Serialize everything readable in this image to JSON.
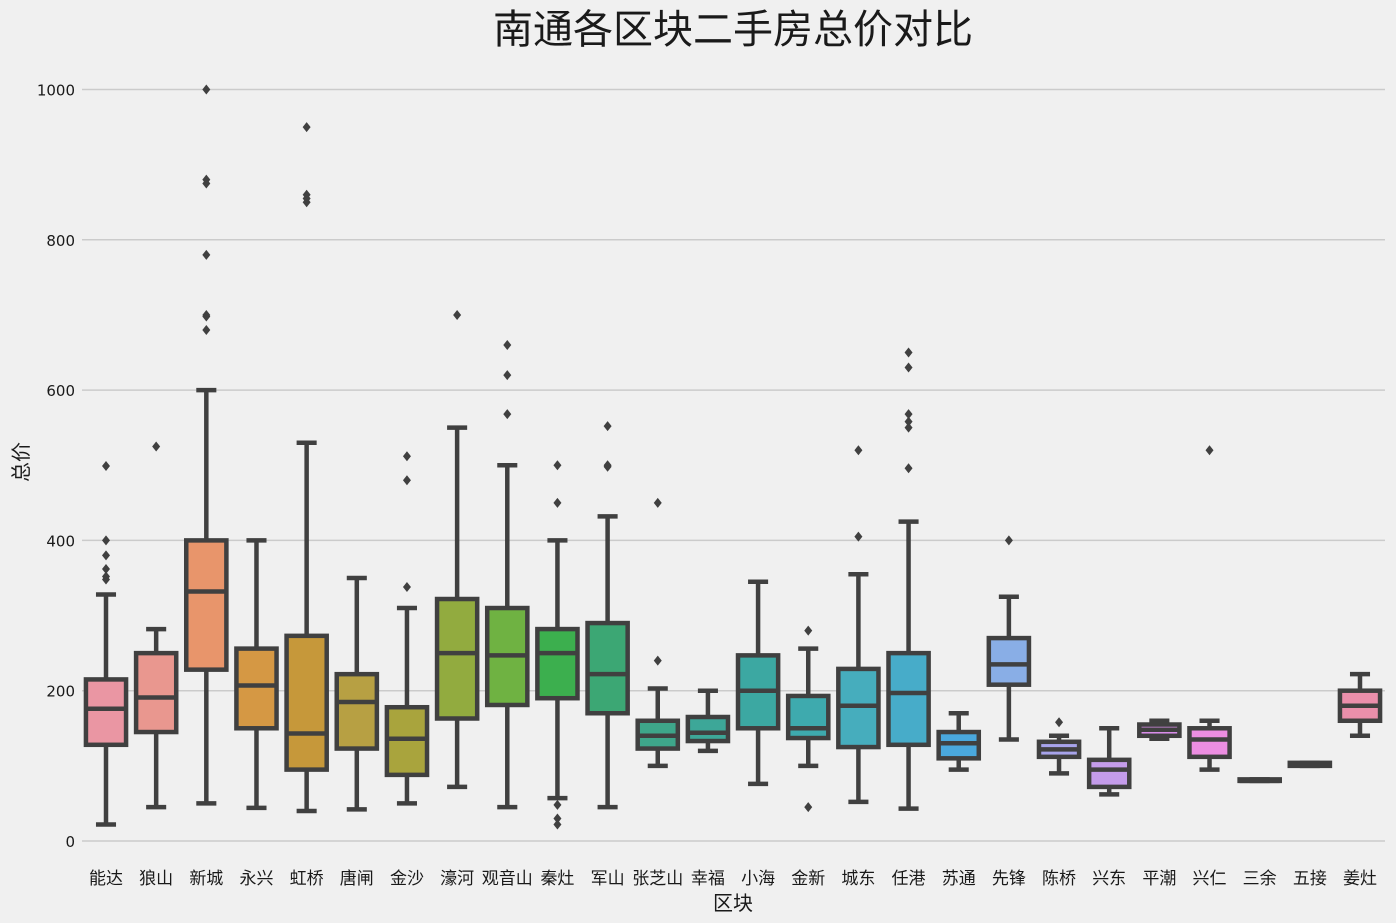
{
  "chart_data": {
    "type": "box",
    "title": "南通各区块二手房总价对比",
    "xlabel": "区块",
    "ylabel": "总价",
    "ylim": [
      -35,
      1065
    ],
    "yticks": [
      0,
      200,
      400,
      600,
      800,
      1000
    ],
    "grid": "horizontal",
    "line_color": "#404040",
    "categories": [
      "能达",
      "狼山",
      "新城",
      "永兴",
      "虹桥",
      "唐闸",
      "金沙",
      "濠河",
      "观音山",
      "秦灶",
      "军山",
      "张芝山",
      "幸福",
      "小海",
      "金新",
      "城东",
      "任港",
      "苏通",
      "先锋",
      "陈桥",
      "兴东",
      "平潮",
      "兴仁",
      "三余",
      "五接",
      "姜灶"
    ],
    "colors": [
      "#ea96a3",
      "#e9978f",
      "#e8956b",
      "#d59844",
      "#c6983a",
      "#b7a043",
      "#a9a43d",
      "#92ab3f",
      "#6fb242",
      "#3caf4e",
      "#3ca774",
      "#3ea68a",
      "#3da798",
      "#3ca8a2",
      "#3eaaae",
      "#46adbd",
      "#47acc9",
      "#4aa8dd",
      "#89aee6",
      "#a7a3ea",
      "#c49cea",
      "#d98ee9",
      "#ec8ee1",
      "#ed8fc8",
      "#ee92ba",
      "#ea8fab"
    ],
    "boxes": [
      {
        "whislo": 22,
        "q1": 128,
        "med": 176,
        "q3": 215,
        "whishi": 328,
        "fliers": [
          348,
          352,
          362,
          380,
          400,
          499
        ]
      },
      {
        "whislo": 45,
        "q1": 145,
        "med": 191,
        "q3": 250,
        "whishi": 282,
        "fliers": [
          525
        ]
      },
      {
        "whislo": 50,
        "q1": 228,
        "med": 332,
        "q3": 400,
        "whishi": 600,
        "fliers": [
          680,
          698,
          700,
          780,
          875,
          880,
          1000
        ]
      },
      {
        "whislo": 44,
        "q1": 150,
        "med": 207,
        "q3": 256,
        "whishi": 400,
        "fliers": []
      },
      {
        "whislo": 40,
        "q1": 95,
        "med": 143,
        "q3": 273,
        "whishi": 530,
        "fliers": [
          850,
          855,
          860,
          950
        ]
      },
      {
        "whislo": 42,
        "q1": 123,
        "med": 185,
        "q3": 222,
        "whishi": 350,
        "fliers": []
      },
      {
        "whislo": 50,
        "q1": 88,
        "med": 136,
        "q3": 178,
        "whishi": 310,
        "fliers": [
          338,
          480,
          512
        ]
      },
      {
        "whislo": 72,
        "q1": 163,
        "med": 250,
        "q3": 322,
        "whishi": 550,
        "fliers": [
          700
        ]
      },
      {
        "whislo": 45,
        "q1": 181,
        "med": 247,
        "q3": 310,
        "whishi": 500,
        "fliers": [
          568,
          620,
          660
        ]
      },
      {
        "whislo": 57,
        "q1": 190,
        "med": 250,
        "q3": 282,
        "whishi": 400,
        "fliers": [
          22,
          30,
          48,
          450,
          500
        ]
      },
      {
        "whislo": 45,
        "q1": 170,
        "med": 222,
        "q3": 290,
        "whishi": 432,
        "fliers": [
          498,
          500,
          552
        ]
      },
      {
        "whislo": 100,
        "q1": 123,
        "med": 140,
        "q3": 160,
        "whishi": 203,
        "fliers": [
          240,
          450
        ]
      },
      {
        "whislo": 120,
        "q1": 133,
        "med": 144,
        "q3": 165,
        "whishi": 200,
        "fliers": []
      },
      {
        "whislo": 76,
        "q1": 150,
        "med": 200,
        "q3": 247,
        "whishi": 345,
        "fliers": []
      },
      {
        "whislo": 100,
        "q1": 137,
        "med": 150,
        "q3": 193,
        "whishi": 256,
        "fliers": [
          45,
          280
        ]
      },
      {
        "whislo": 52,
        "q1": 125,
        "med": 180,
        "q3": 229,
        "whishi": 355,
        "fliers": [
          405,
          520
        ]
      },
      {
        "whislo": 43,
        "q1": 128,
        "med": 197,
        "q3": 250,
        "whishi": 425,
        "fliers": [
          496,
          550,
          558,
          568,
          630,
          650
        ]
      },
      {
        "whislo": 95,
        "q1": 110,
        "med": 130,
        "q3": 145,
        "whishi": 170,
        "fliers": []
      },
      {
        "whislo": 135,
        "q1": 208,
        "med": 235,
        "q3": 270,
        "whishi": 325,
        "fliers": [
          400
        ]
      },
      {
        "whislo": 90,
        "q1": 112,
        "med": 122,
        "q3": 132,
        "whishi": 140,
        "fliers": [
          158
        ]
      },
      {
        "whislo": 62,
        "q1": 72,
        "med": 95,
        "q3": 108,
        "whishi": 150,
        "fliers": []
      },
      {
        "whislo": 136,
        "q1": 140,
        "med": 148,
        "q3": 155,
        "whishi": 160,
        "fliers": []
      },
      {
        "whislo": 95,
        "q1": 112,
        "med": 135,
        "q3": 150,
        "whishi": 160,
        "fliers": [
          520
        ]
      },
      {
        "whislo": 80,
        "q1": 80,
        "med": 80,
        "q3": 82,
        "whishi": 82,
        "fliers": []
      },
      {
        "whislo": 100,
        "q1": 100,
        "med": 102,
        "q3": 104,
        "whishi": 104,
        "fliers": []
      },
      {
        "whislo": 140,
        "q1": 160,
        "med": 180,
        "q3": 200,
        "whishi": 222,
        "fliers": []
      }
    ]
  }
}
